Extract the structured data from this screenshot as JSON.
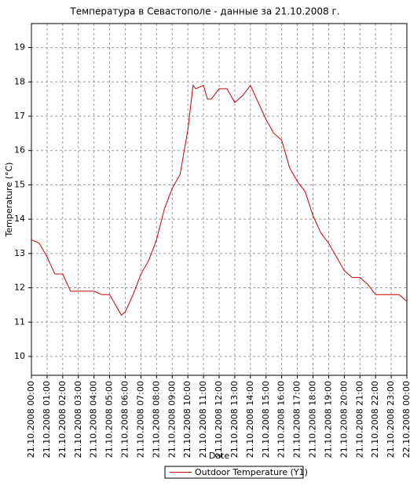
{
  "chart_data": {
    "type": "line",
    "title": "Температура в Севастополе - данные за 21.10.2008 г.",
    "x_label": "Date",
    "y_label": "Temperature (°C)",
    "x": [
      "21.10.2008 00:00",
      "21.10.2008 00:30",
      "21.10.2008 01:00",
      "21.10.2008 01:30",
      "21.10.2008 02:00",
      "21.10.2008 02:30",
      "21.10.2008 03:00",
      "21.10.2008 03:30",
      "21.10.2008 04:00",
      "21.10.2008 04:30",
      "21.10.2008 05:00",
      "21.10.2008 05:30",
      "21.10.2008 05:45",
      "21.10.2008 06:00",
      "21.10.2008 06:30",
      "21.10.2008 07:00",
      "21.10.2008 07:30",
      "21.10.2008 08:00",
      "21.10.2008 08:30",
      "21.10.2008 09:00",
      "21.10.2008 09:30",
      "21.10.2008 10:00",
      "21.10.2008 10:20",
      "21.10.2008 10:30",
      "21.10.2008 11:00",
      "21.10.2008 11:15",
      "21.10.2008 11:30",
      "21.10.2008 12:00",
      "21.10.2008 12:30",
      "21.10.2008 13:00",
      "21.10.2008 13:30",
      "21.10.2008 14:00",
      "21.10.2008 14:30",
      "21.10.2008 15:00",
      "21.10.2008 15:30",
      "21.10.2008 16:00",
      "21.10.2008 16:30",
      "21.10.2008 17:00",
      "21.10.2008 17:30",
      "21.10.2008 18:00",
      "21.10.2008 18:30",
      "21.10.2008 19:00",
      "21.10.2008 19:30",
      "21.10.2008 20:00",
      "21.10.2008 20:30",
      "21.10.2008 21:00",
      "21.10.2008 21:30",
      "21.10.2008 22:00",
      "21.10.2008 22:30",
      "21.10.2008 23:00",
      "21.10.2008 23:30",
      "22.10.2008 00:00"
    ],
    "series": [
      {
        "name": "Outdoor Temperature (Y1)",
        "color": "#cc0000",
        "values": [
          13.4,
          13.3,
          12.9,
          12.4,
          12.4,
          11.9,
          11.9,
          11.9,
          11.9,
          11.8,
          11.8,
          11.4,
          11.2,
          11.3,
          11.8,
          12.4,
          12.8,
          13.4,
          14.3,
          14.9,
          15.3,
          16.6,
          17.9,
          17.8,
          17.9,
          17.5,
          17.5,
          17.8,
          17.8,
          17.4,
          17.6,
          17.9,
          17.4,
          16.9,
          16.5,
          16.3,
          15.5,
          15.1,
          14.8,
          14.1,
          13.6,
          13.3,
          12.9,
          12.5,
          12.3,
          12.3,
          12.1,
          11.8,
          11.8,
          11.8,
          11.8,
          11.6
        ]
      }
    ],
    "xlim": [
      "21.10.2008 00:00",
      "22.10.2008 00:00"
    ],
    "xticks": [
      "21.10.2008 00:00",
      "21.10.2008 01:00",
      "21.10.2008 02:00",
      "21.10.2008 03:00",
      "21.10.2008 04:00",
      "21.10.2008 05:00",
      "21.10.2008 06:00",
      "21.10.2008 07:00",
      "21.10.2008 08:00",
      "21.10.2008 09:00",
      "21.10.2008 10:00",
      "21.10.2008 11:00",
      "21.10.2008 12:00",
      "21.10.2008 13:00",
      "21.10.2008 14:00",
      "21.10.2008 15:00",
      "21.10.2008 16:00",
      "21.10.2008 17:00",
      "21.10.2008 18:00",
      "21.10.2008 19:00",
      "21.10.2008 20:00",
      "21.10.2008 21:00",
      "21.10.2008 22:00",
      "21.10.2008 23:00",
      "22.10.2008 00:00"
    ],
    "ylim": [
      9.45,
      19.7
    ],
    "yticks": [
      10,
      11,
      12,
      13,
      14,
      15,
      16,
      17,
      18,
      19
    ],
    "grid": true
  }
}
